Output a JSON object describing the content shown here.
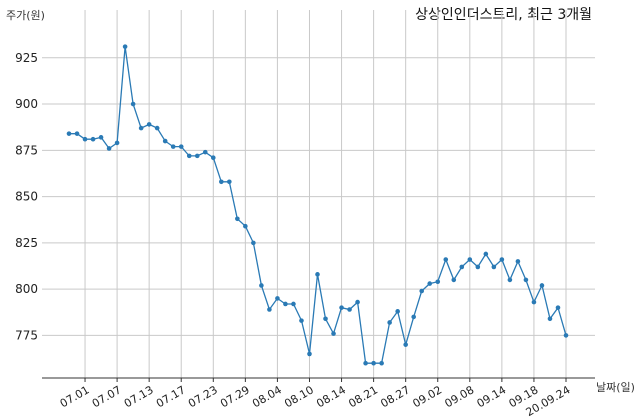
{
  "chart_data": {
    "type": "line",
    "title": "상상인인더스트리, 최근 3개월",
    "ylabel": "주가(원)",
    "xlabel": "날짜(일)",
    "ylim": [
      752,
      940
    ],
    "yticks": [
      775,
      800,
      825,
      850,
      875,
      900,
      925
    ],
    "grid": true,
    "color": "#2a7ab5",
    "x": [
      "06.29",
      "06.30",
      "07.01",
      "07.02",
      "07.03",
      "07.06",
      "07.07",
      "07.08",
      "07.09",
      "07.10",
      "07.13",
      "07.14",
      "07.15",
      "07.16",
      "07.17",
      "07.20",
      "07.21",
      "07.22",
      "07.23",
      "07.24",
      "07.27",
      "07.28",
      "07.29",
      "07.30",
      "07.31",
      "08.03",
      "08.04",
      "08.05",
      "08.06",
      "08.07",
      "08.10",
      "08.11",
      "08.12",
      "08.13",
      "08.14",
      "08.18",
      "08.19",
      "08.20",
      "08.21",
      "08.24",
      "08.25",
      "08.26",
      "08.27",
      "08.28",
      "08.31",
      "09.01",
      "09.02",
      "09.03",
      "09.04",
      "09.07",
      "09.08",
      "09.09",
      "09.10",
      "09.11",
      "09.14",
      "09.15",
      "09.16",
      "09.17",
      "09.18",
      "09.21",
      "09.22",
      "09.23",
      "20.09.24"
    ],
    "xticks": [
      "07.01",
      "07.07",
      "07.13",
      "07.17",
      "07.23",
      "07.29",
      "08.04",
      "08.10",
      "08.14",
      "08.21",
      "08.27",
      "09.02",
      "09.08",
      "09.14",
      "09.18",
      "20.09.24"
    ],
    "values": [
      884,
      884,
      881,
      881,
      882,
      876,
      879,
      931,
      900,
      887,
      889,
      887,
      880,
      877,
      877,
      872,
      872,
      874,
      871,
      858,
      858,
      838,
      834,
      825,
      802,
      789,
      795,
      792,
      792,
      783,
      765,
      808,
      784,
      776,
      790,
      789,
      793,
      760,
      760,
      760,
      782,
      788,
      770,
      785,
      799,
      803,
      804,
      816,
      805,
      812,
      816,
      812,
      819,
      812,
      816,
      805,
      815,
      805,
      793,
      802,
      784,
      790,
      775
    ]
  }
}
